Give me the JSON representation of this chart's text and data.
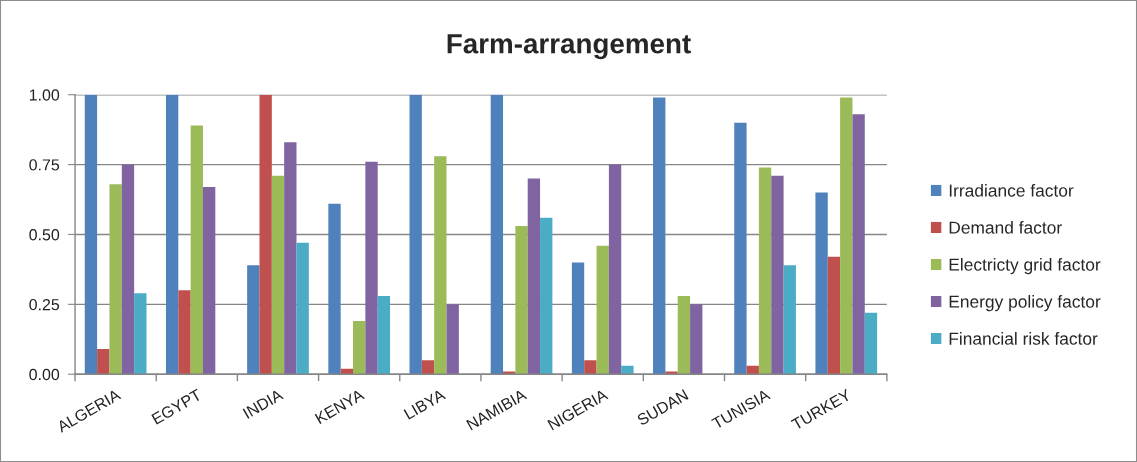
{
  "chart_data": {
    "type": "bar",
    "title": "Farm-arrangement",
    "categories": [
      "ALGERIA",
      "EGYPT",
      "INDIA",
      "KENYA",
      "LIBYA",
      "NAMIBIA",
      "NIGERIA",
      "SUDAN",
      "TUNISIA",
      "TURKEY"
    ],
    "series": [
      {
        "name": "Irradiance factor",
        "color": "#4f81bd",
        "values": [
          1.0,
          1.0,
          0.39,
          0.61,
          1.0,
          1.0,
          0.4,
          0.99,
          0.9,
          0.65
        ]
      },
      {
        "name": "Demand factor",
        "color": "#c0504d",
        "values": [
          0.09,
          0.3,
          1.0,
          0.02,
          0.05,
          0.01,
          0.05,
          0.01,
          0.03,
          0.42
        ]
      },
      {
        "name": "Electricty grid factor",
        "color": "#9bbb59",
        "values": [
          0.68,
          0.89,
          0.71,
          0.19,
          0.78,
          0.53,
          0.46,
          0.28,
          0.74,
          0.99
        ]
      },
      {
        "name": "Energy policy factor",
        "color": "#8064a2",
        "values": [
          0.75,
          0.67,
          0.83,
          0.76,
          0.25,
          0.7,
          0.75,
          0.25,
          0.71,
          0.93
        ]
      },
      {
        "name": "Financial risk factor",
        "color": "#4bacc6",
        "values": [
          0.29,
          null,
          0.47,
          0.28,
          null,
          0.56,
          0.03,
          null,
          0.39,
          0.22
        ]
      }
    ],
    "ylim": [
      0,
      1
    ],
    "yticks": [
      {
        "value": 0,
        "label": "0.00"
      },
      {
        "value": 0.25,
        "label": "0.25"
      },
      {
        "value": 0.5,
        "label": "0.50"
      },
      {
        "value": 0.75,
        "label": "0.75"
      },
      {
        "value": 1,
        "label": "1.00"
      }
    ],
    "grid": "y",
    "legend": "right"
  }
}
